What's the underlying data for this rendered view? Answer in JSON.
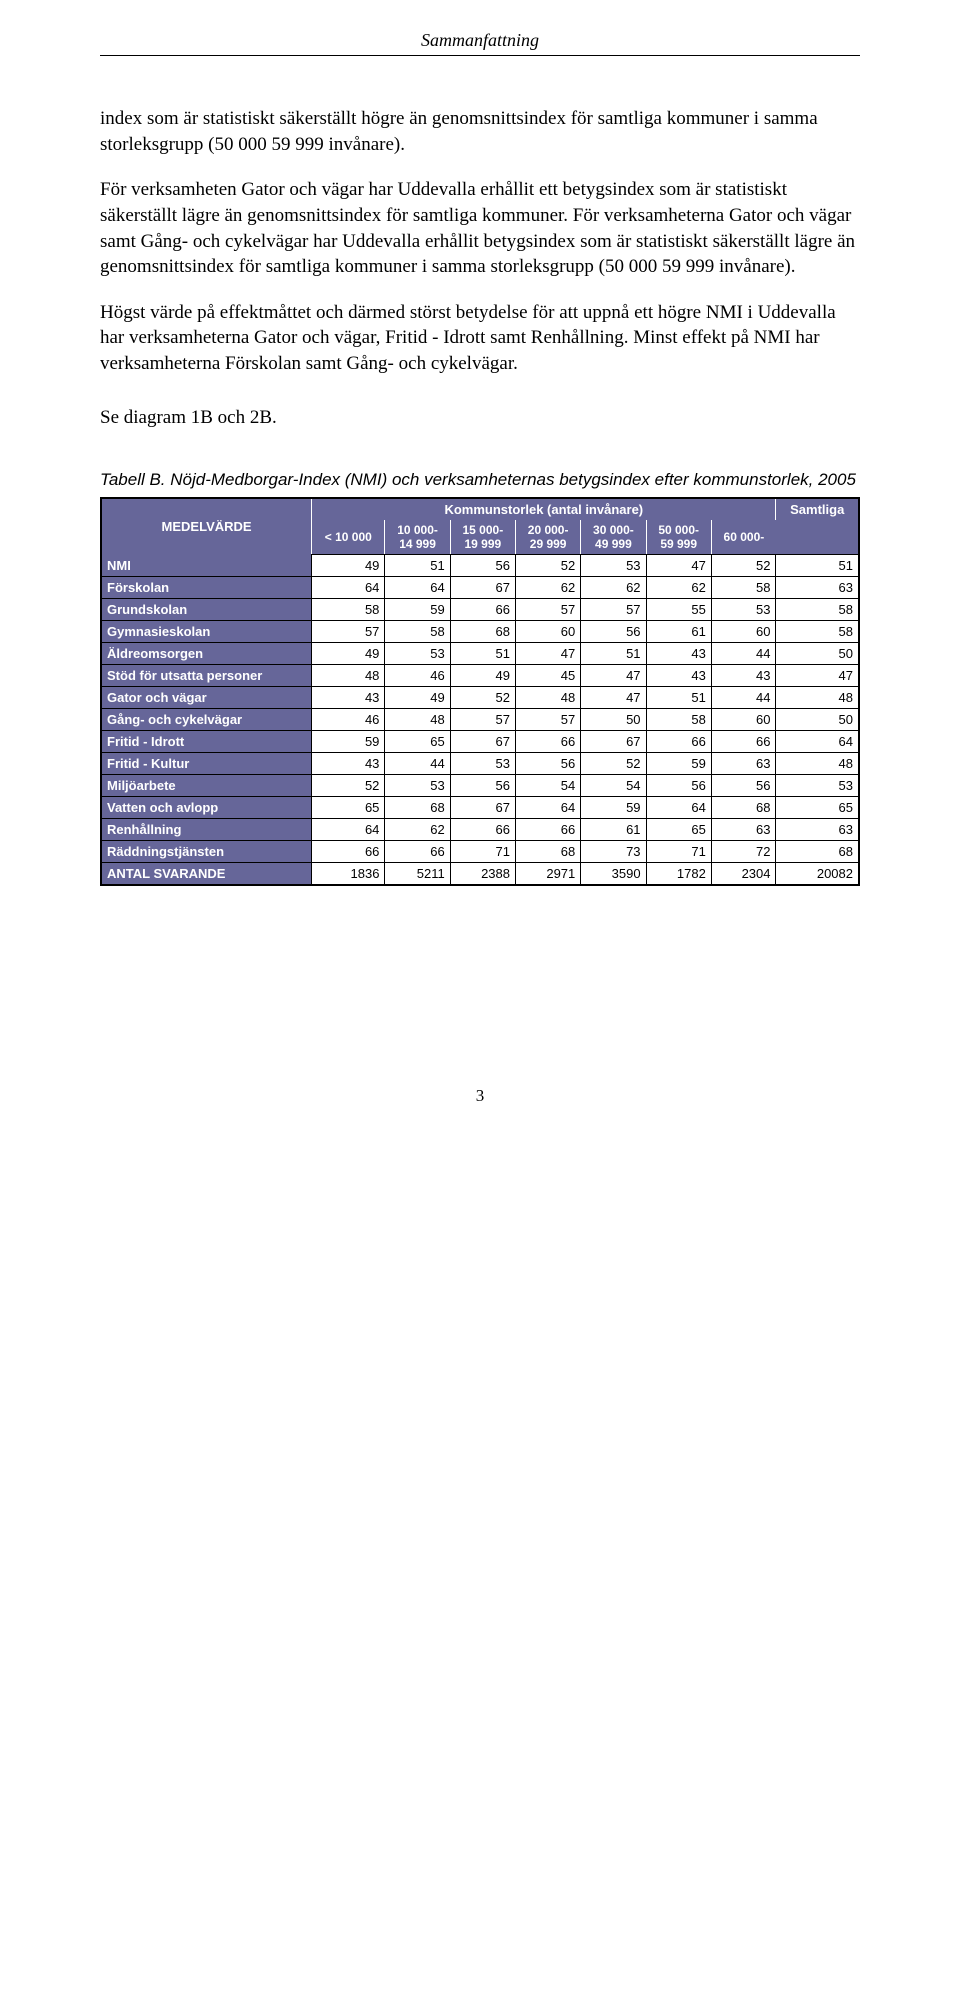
{
  "header": {
    "title": "Sammanfattning"
  },
  "paragraphs": {
    "p1": "index som är statistiskt säkerställt högre än genomsnittsindex för samtliga kommuner i samma storleksgrupp (50 000 59 999 invånare).",
    "p2": "För verksamheten Gator och vägar har Uddevalla erhållit ett betygsindex som är statistiskt säkerställt lägre än genomsnittsindex för samtliga kommuner. För verksamheterna Gator och vägar samt Gång- och cykelvägar har Uddevalla erhållit betygsindex som är statistiskt säkerställt lägre än genomsnittsindex för samtliga kommuner i samma storleksgrupp (50 000 59 999 invånare).",
    "p3": "Högst värde på effektmåttet och därmed störst betydelse för att uppnå ett högre NMI i Uddevalla har verksamheterna Gator och vägar, Fritid - Idrott samt Renhållning. Minst effekt på NMI har verksamheterna Förskolan samt Gång- och cykelvägar."
  },
  "subheading": "Se diagram 1B och 2B.",
  "table": {
    "caption": "Tabell B. Nöjd-Medborgar-Index (NMI) och verksamheternas betygsindex efter kommunstorlek, 2005",
    "rowlabel_header": "MEDELVÄRDE",
    "group_header": "Kommunstorlek (antal invånare)",
    "samtliga_header": "Samtliga",
    "sub_headers": [
      {
        "l1": "< 10 000",
        "l2": ""
      },
      {
        "l1": "10 000-",
        "l2": "14 999"
      },
      {
        "l1": "15 000-",
        "l2": "19 999"
      },
      {
        "l1": "20 000-",
        "l2": "29 999"
      },
      {
        "l1": "30 000-",
        "l2": "49 999"
      },
      {
        "l1": "50 000-",
        "l2": "59 999"
      },
      {
        "l1": "60 000-",
        "l2": ""
      }
    ],
    "header_bg": "#666699",
    "header_fg": "#ffffff",
    "cell_bg": "#ffffff",
    "rows": [
      {
        "label": "NMI",
        "vals": [
          "49",
          "51",
          "56",
          "52",
          "53",
          "47",
          "52",
          "51"
        ]
      },
      {
        "label": "Förskolan",
        "vals": [
          "64",
          "64",
          "67",
          "62",
          "62",
          "62",
          "58",
          "63"
        ]
      },
      {
        "label": "Grundskolan",
        "vals": [
          "58",
          "59",
          "66",
          "57",
          "57",
          "55",
          "53",
          "58"
        ]
      },
      {
        "label": "Gymnasieskolan",
        "vals": [
          "57",
          "58",
          "68",
          "60",
          "56",
          "61",
          "60",
          "58"
        ]
      },
      {
        "label": "Äldreomsorgen",
        "vals": [
          "49",
          "53",
          "51",
          "47",
          "51",
          "43",
          "44",
          "50"
        ]
      },
      {
        "label": "Stöd för utsatta personer",
        "vals": [
          "48",
          "46",
          "49",
          "45",
          "47",
          "43",
          "43",
          "47"
        ]
      },
      {
        "label": "Gator och vägar",
        "vals": [
          "43",
          "49",
          "52",
          "48",
          "47",
          "51",
          "44",
          "48"
        ]
      },
      {
        "label": "Gång- och cykelvägar",
        "vals": [
          "46",
          "48",
          "57",
          "57",
          "50",
          "58",
          "60",
          "50"
        ]
      },
      {
        "label": "Fritid - Idrott",
        "vals": [
          "59",
          "65",
          "67",
          "66",
          "67",
          "66",
          "66",
          "64"
        ]
      },
      {
        "label": "Fritid - Kultur",
        "vals": [
          "43",
          "44",
          "53",
          "56",
          "52",
          "59",
          "63",
          "48"
        ]
      },
      {
        "label": "Miljöarbete",
        "vals": [
          "52",
          "53",
          "56",
          "54",
          "54",
          "56",
          "56",
          "53"
        ]
      },
      {
        "label": "Vatten och avlopp",
        "vals": [
          "65",
          "68",
          "67",
          "64",
          "59",
          "64",
          "68",
          "65"
        ]
      },
      {
        "label": "Renhållning",
        "vals": [
          "64",
          "62",
          "66",
          "66",
          "61",
          "65",
          "63",
          "63"
        ]
      },
      {
        "label": "Räddningstjänsten",
        "vals": [
          "66",
          "66",
          "71",
          "68",
          "73",
          "71",
          "72",
          "68"
        ]
      },
      {
        "label": "ANTAL SVARANDE",
        "vals": [
          "1836",
          "5211",
          "2388",
          "2971",
          "3590",
          "1782",
          "2304",
          "20082"
        ]
      }
    ]
  },
  "page_number": "3"
}
